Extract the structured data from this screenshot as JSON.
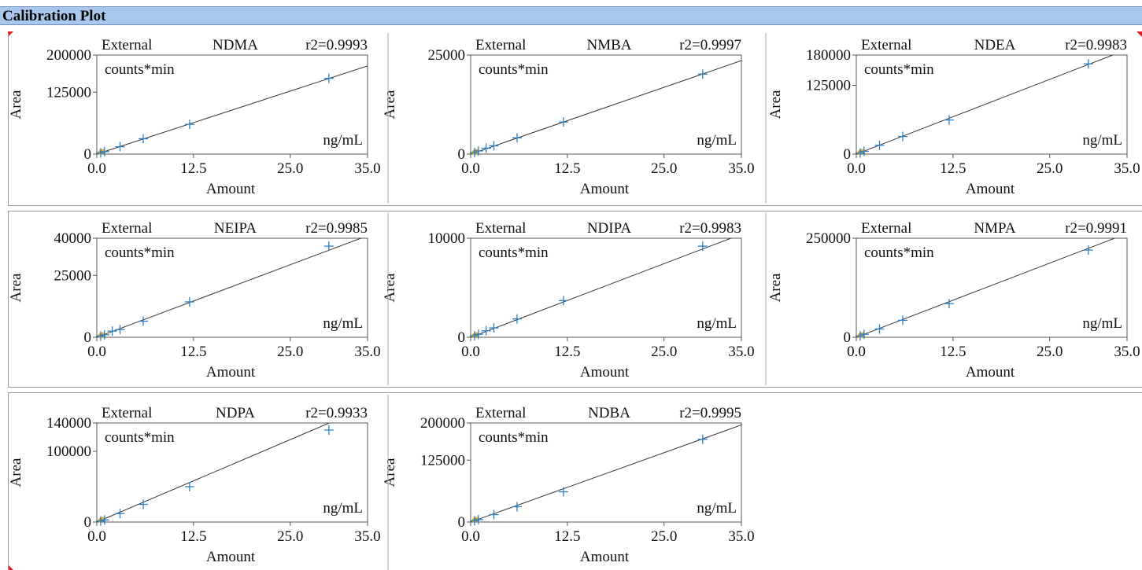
{
  "window": {
    "title": "Calibration Plot"
  },
  "chart_data": [
    {
      "type": "scatter",
      "compound": "NDMA",
      "method": "External",
      "r2": "r2=0.9993",
      "ylabel": "Area",
      "xlabel": "Amount",
      "units_area": "counts*min",
      "units_amount": "ng/mL",
      "xlim": [
        0,
        35
      ],
      "ylim": [
        0,
        200000
      ],
      "xticks": [
        "0.0",
        "12.5",
        "25.0",
        "35.0"
      ],
      "xtick_values": [
        0,
        12.5,
        25,
        35
      ],
      "yticks": [
        "0",
        "125000",
        "200000"
      ],
      "ytick_values": [
        0,
        125000,
        200000
      ],
      "points": [
        [
          0.5,
          2500
        ],
        [
          1,
          5000
        ],
        [
          3,
          15000
        ],
        [
          6,
          31000
        ],
        [
          12,
          60000
        ],
        [
          30,
          153000
        ]
      ],
      "line": [
        [
          0,
          0
        ],
        [
          35,
          178000
        ]
      ]
    },
    {
      "type": "scatter",
      "compound": "NMBA",
      "method": "External",
      "r2": "r2=0.9997",
      "ylabel": "Area",
      "xlabel": "Amount",
      "units_area": "counts*min",
      "units_amount": "ng/mL",
      "xlim": [
        0,
        35
      ],
      "ylim": [
        0,
        25000
      ],
      "xticks": [
        "0.0",
        "12.5",
        "25.0",
        "35.0"
      ],
      "xtick_values": [
        0,
        12.5,
        25,
        35
      ],
      "yticks": [
        "0",
        "25000"
      ],
      "ytick_values": [
        0,
        25000
      ],
      "points": [
        [
          0.5,
          400
        ],
        [
          1,
          800
        ],
        [
          2,
          1500
        ],
        [
          3,
          2100
        ],
        [
          6,
          4100
        ],
        [
          12,
          8100
        ],
        [
          30,
          20200
        ]
      ],
      "line": [
        [
          0,
          0
        ],
        [
          35,
          23600
        ]
      ]
    },
    {
      "type": "scatter",
      "compound": "NDEA",
      "method": "External",
      "r2": "r2=0.9983",
      "ylabel": "Area",
      "xlabel": "Amount",
      "units_area": "counts*min",
      "units_amount": "ng/mL",
      "xlim": [
        0,
        35
      ],
      "ylim": [
        0,
        180000
      ],
      "xticks": [
        "0.0",
        "12.5",
        "25.0",
        "35.0"
      ],
      "xtick_values": [
        0,
        12.5,
        25,
        35
      ],
      "yticks": [
        "0",
        "125000",
        "180000"
      ],
      "ytick_values": [
        0,
        125000,
        180000
      ],
      "points": [
        [
          0.5,
          2000
        ],
        [
          1,
          5000
        ],
        [
          3,
          16000
        ],
        [
          6,
          32000
        ],
        [
          12,
          62000
        ],
        [
          30,
          164000
        ]
      ],
      "line": [
        [
          0,
          0
        ],
        [
          35,
          190000
        ]
      ]
    },
    {
      "type": "scatter",
      "compound": "NEIPA",
      "method": "External",
      "r2": "r2=0.9985",
      "ylabel": "Area",
      "xlabel": "Amount",
      "units_area": "counts*min",
      "units_amount": "ng/mL",
      "xlim": [
        0,
        35
      ],
      "ylim": [
        0,
        40000
      ],
      "xticks": [
        "0.0",
        "12.5",
        "25.0",
        "35.0"
      ],
      "xtick_values": [
        0,
        12.5,
        25,
        35
      ],
      "yticks": [
        "0",
        "25000",
        "40000"
      ],
      "ytick_values": [
        0,
        25000,
        40000
      ],
      "points": [
        [
          0.5,
          500
        ],
        [
          1,
          1000
        ],
        [
          2,
          2500
        ],
        [
          3,
          3100
        ],
        [
          6,
          6500
        ],
        [
          12,
          14300
        ],
        [
          30,
          36800
        ]
      ],
      "line": [
        [
          0,
          0
        ],
        [
          35,
          41000
        ]
      ]
    },
    {
      "type": "scatter",
      "compound": "NDIPA",
      "method": "External",
      "r2": "r2=0.9983",
      "ylabel": "Area",
      "xlabel": "Amount",
      "units_area": "counts*min",
      "units_amount": "ng/mL",
      "xlim": [
        0,
        35
      ],
      "ylim": [
        0,
        10000
      ],
      "xticks": [
        "0.0",
        "12.5",
        "25.0",
        "35.0"
      ],
      "xtick_values": [
        0,
        12.5,
        25,
        35
      ],
      "yticks": [
        "0",
        "10000"
      ],
      "ytick_values": [
        0,
        10000
      ],
      "points": [
        [
          0.5,
          150
        ],
        [
          1,
          300
        ],
        [
          2,
          650
        ],
        [
          3,
          950
        ],
        [
          6,
          1850
        ],
        [
          12,
          3700
        ],
        [
          30,
          9200
        ]
      ],
      "line": [
        [
          0,
          0
        ],
        [
          35,
          10400
        ]
      ]
    },
    {
      "type": "scatter",
      "compound": "NMPA",
      "method": "External",
      "r2": "r2=0.9991",
      "ylabel": "Area",
      "xlabel": "Amount",
      "units_area": "counts*min",
      "units_amount": "ng/mL",
      "xlim": [
        0,
        35
      ],
      "ylim": [
        0,
        250000
      ],
      "xticks": [
        "0.0",
        "12.5",
        "25.0",
        "35.0"
      ],
      "xtick_values": [
        0,
        12.5,
        25,
        35
      ],
      "yticks": [
        "0",
        "250000"
      ],
      "ytick_values": [
        0,
        250000
      ],
      "points": [
        [
          0.5,
          3500
        ],
        [
          1,
          7500
        ],
        [
          3,
          21000
        ],
        [
          6,
          43000
        ],
        [
          12,
          85000
        ],
        [
          30,
          220000
        ]
      ],
      "line": [
        [
          0,
          0
        ],
        [
          35,
          262000
        ]
      ]
    },
    {
      "type": "scatter",
      "compound": "NDPA",
      "method": "External",
      "r2": "r2=0.9933",
      "ylabel": "Area",
      "xlabel": "Amount",
      "units_area": "counts*min",
      "units_amount": "ng/mL",
      "xlim": [
        0,
        35
      ],
      "ylim": [
        0,
        140000
      ],
      "xticks": [
        "0.0",
        "12.5",
        "25.0",
        "35.0"
      ],
      "xtick_values": [
        0,
        12.5,
        25,
        35
      ],
      "yticks": [
        "0",
        "100000",
        "140000"
      ],
      "ytick_values": [
        0,
        100000,
        140000
      ],
      "points": [
        [
          0.5,
          1500
        ],
        [
          1,
          3000
        ],
        [
          3,
          12000
        ],
        [
          6,
          25000
        ],
        [
          12,
          50000
        ],
        [
          30,
          130000
        ]
      ],
      "line": [
        [
          0,
          0
        ],
        [
          35,
          163000
        ]
      ]
    },
    {
      "type": "scatter",
      "compound": "NDBA",
      "method": "External",
      "r2": "r2=0.9995",
      "ylabel": "Area",
      "xlabel": "Amount",
      "units_area": "counts*min",
      "units_amount": "ng/mL",
      "xlim": [
        0,
        35
      ],
      "ylim": [
        0,
        200000
      ],
      "xticks": [
        "0.0",
        "12.5",
        "25.0",
        "35.0"
      ],
      "xtick_values": [
        0,
        12.5,
        25,
        35
      ],
      "yticks": [
        "0",
        "125000",
        "200000"
      ],
      "ytick_values": [
        0,
        125000,
        200000
      ],
      "points": [
        [
          0.5,
          2500
        ],
        [
          1,
          5000
        ],
        [
          3,
          15000
        ],
        [
          6,
          31000
        ],
        [
          12,
          61000
        ],
        [
          30,
          167000
        ]
      ],
      "line": [
        [
          0,
          0
        ],
        [
          35,
          196000
        ]
      ]
    }
  ]
}
